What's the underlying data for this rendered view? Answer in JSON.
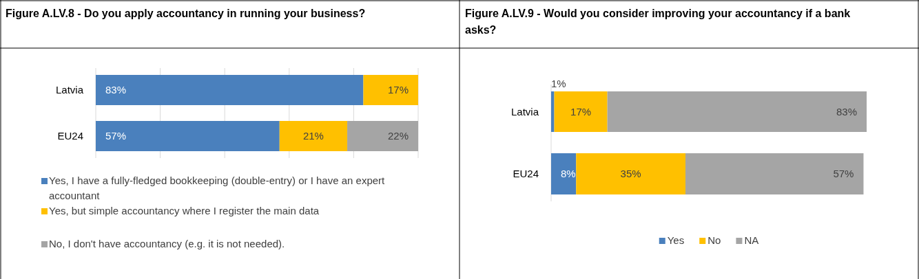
{
  "chart_data": [
    {
      "type": "bar",
      "orientation": "horizontal",
      "stacked": true,
      "title": "Figure A.LV.8 - Do you apply accountancy in running your business?",
      "categories": [
        "Latvia",
        "EU24"
      ],
      "series": [
        {
          "name": "Yes, I have a fully-fledged bookkeeping (double-entry) or I have an expert accountant",
          "color": "#4a80bd",
          "values": [
            83,
            57
          ],
          "value_labels": [
            "83%",
            "57%"
          ]
        },
        {
          "name": "Yes, but simple accountancy where I register the main data",
          "color": "#ffc000",
          "values": [
            17,
            21
          ],
          "value_labels": [
            "17%",
            "21%"
          ]
        },
        {
          "name": "No, I don't have accountancy (e.g. it is not needed).",
          "color": "#a5a5a5",
          "values": [
            null,
            22
          ],
          "value_labels": [
            null,
            "22%"
          ]
        }
      ],
      "grid": "x",
      "tick_labels": "y",
      "legend": "bottom"
    },
    {
      "type": "bar",
      "orientation": "horizontal",
      "stacked": true,
      "title": "Figure A.LV.9 - Would you consider improving your accountancy if a bank asks?",
      "categories": [
        "Latvia",
        "EU24"
      ],
      "series": [
        {
          "name": "Yes",
          "color": "#4a80bd",
          "values": [
            1,
            8
          ],
          "value_labels": [
            "1%",
            "8%"
          ]
        },
        {
          "name": "No",
          "color": "#ffc000",
          "values": [
            17,
            35
          ],
          "value_labels": [
            "17%",
            "35%"
          ]
        },
        {
          "name": "NA",
          "color": "#a5a5a5",
          "values": [
            83,
            57
          ],
          "value_labels": [
            "83%",
            "57%"
          ]
        }
      ],
      "tick_labels": "y",
      "legend": "bottom"
    }
  ]
}
